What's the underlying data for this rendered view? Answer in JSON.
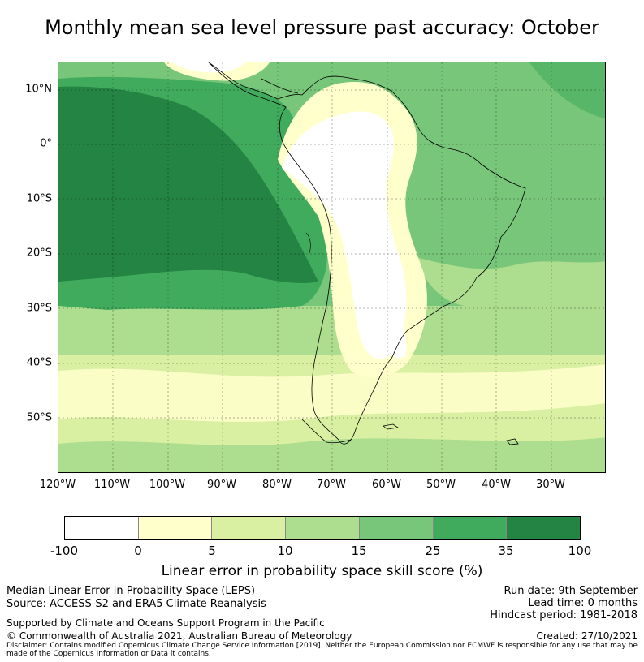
{
  "title": "Monthly mean sea level pressure past accuracy: October",
  "map": {
    "lat_labels": [
      "10°N",
      "0°",
      "10°S",
      "20°S",
      "30°S",
      "40°S",
      "50°S"
    ],
    "lon_labels": [
      "120°W",
      "110°W",
      "100°W",
      "90°W",
      "80°W",
      "70°W",
      "60°W",
      "50°W",
      "40°W",
      "30°W"
    ],
    "gridlines": true,
    "region": "South America and eastern Pacific"
  },
  "colorbar": {
    "ticks": [
      "-100",
      "0",
      "5",
      "10",
      "15",
      "25",
      "35",
      "100"
    ],
    "colors": [
      "#ffffff",
      "#ffffcc",
      "#d9f0a3",
      "#addd8e",
      "#78c679",
      "#41ab5d",
      "#238443"
    ],
    "label": "Linear error in probability space skill score (%)"
  },
  "footer": {
    "left": {
      "line1": "Median Linear Error in Probability Space (LEPS)",
      "line2": "Source: ACCESS-S2 and ERA5 Climate Reanalysis",
      "line3": "Supported by Climate and Oceans Support Program in the Pacific",
      "line4": "© Commonwealth of Australia 2021, Australian Bureau of Meteorology"
    },
    "right": {
      "run_date": "Run date: 9th September",
      "lead_time": "Lead time: 0 months",
      "hindcast": "Hindcast period: 1981-2018",
      "created": "Created: 27/10/2021"
    },
    "disclaimer": "Disclaimer: Contains modified Copernicus Climate Change Service Information [2019]. Neither the European Commission nor ECMWF is responsible for any use that may be made of the Copernicus Information or Data it contains."
  }
}
